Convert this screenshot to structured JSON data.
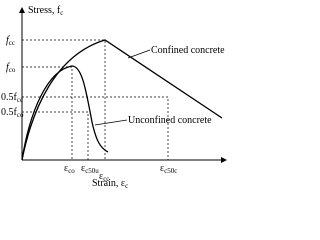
{
  "axes": {
    "y_label": {
      "text": "Stress, f",
      "sub": "c"
    },
    "x_label": {
      "text": "Strain, ε",
      "sub": "c"
    }
  },
  "y_marks": [
    {
      "text": "f",
      "sub": "cc"
    },
    {
      "text": "f",
      "sub": "co"
    },
    {
      "text": "0.5f",
      "sub": "cc"
    },
    {
      "text": "0.5f",
      "sub": "co"
    }
  ],
  "x_marks": [
    {
      "text": "ε",
      "sub": "co"
    },
    {
      "text": "ε",
      "sub": "c50u"
    },
    {
      "text": "ε",
      "sub": "cc"
    },
    {
      "text": "ε",
      "sub": "c50c"
    }
  ],
  "curves": {
    "confined": "Confined concrete",
    "unconfined": "Unconfined concrete"
  }
}
